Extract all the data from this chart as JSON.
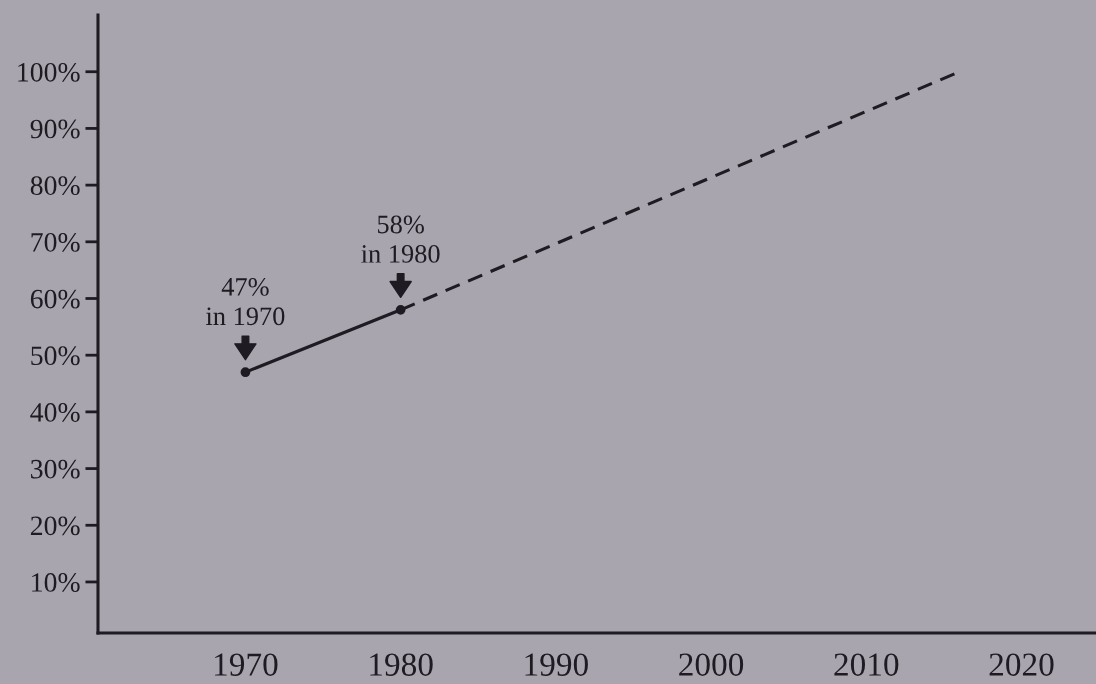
{
  "chart_data": {
    "type": "line",
    "series": [
      {
        "color": "#1e1b22",
        "x": [
          1970,
          1980
        ],
        "values": [
          47,
          58
        ],
        "marker": "circle",
        "line_style": "solid"
      },
      {
        "color": "#1e1b22",
        "x": [
          1980,
          2016
        ],
        "values": [
          58,
          100
        ],
        "marker": "none",
        "line_style": "dashed"
      }
    ],
    "xlim": [
      1960.5,
      2024.8
    ],
    "ylim": [
      1,
      110
    ],
    "xticks": [
      1970,
      1980,
      1990,
      2000,
      2010,
      2020
    ],
    "yticks": [
      {
        "value": 10,
        "label": "10%"
      },
      {
        "value": 20,
        "label": "20%"
      },
      {
        "value": 30,
        "label": "30%"
      },
      {
        "value": 40,
        "label": "40%"
      },
      {
        "value": 50,
        "label": "50%"
      },
      {
        "value": 60,
        "label": "60%"
      },
      {
        "value": 70,
        "label": "70%"
      },
      {
        "value": 80,
        "label": "80%"
      },
      {
        "value": 90,
        "label": "90%"
      },
      {
        "value": 100,
        "label": "100%"
      }
    ],
    "annotations": [
      {
        "text": "47%\nin 1970",
        "x": 1970,
        "y": 47
      },
      {
        "text": "58%\nin 1980",
        "x": 1980,
        "y": 58
      }
    ],
    "grid": false,
    "legend": false
  }
}
